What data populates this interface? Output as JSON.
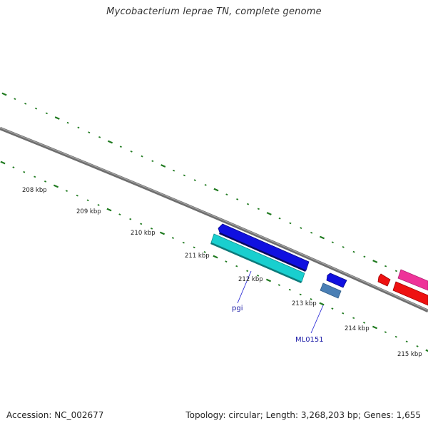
{
  "header": {
    "title": "Mycobacterium leprae TN, complete genome"
  },
  "footer": {
    "accession": "Accession: NC_002677",
    "summary": "Topology: circular; Length: 3,268,203 bp; Genes: 1,655"
  },
  "map": {
    "backbone_color": "#808080",
    "tick_color": "#1f7a1f",
    "scale_labels": [
      "208 kbp",
      "209 kbp",
      "210 kbp",
      "211 kbp",
      "212 kbp",
      "213 kbp",
      "214 kbp",
      "215 kbp"
    ],
    "gene_labels": [
      "pgi",
      "ML0151"
    ],
    "feature_colors": {
      "blue_gene": "#1010e0",
      "cyan_gene": "#19cfcf",
      "steelblue_gene": "#4a7fb5",
      "red_gene": "#ee1111",
      "pink_gene": "#ee3399"
    }
  }
}
